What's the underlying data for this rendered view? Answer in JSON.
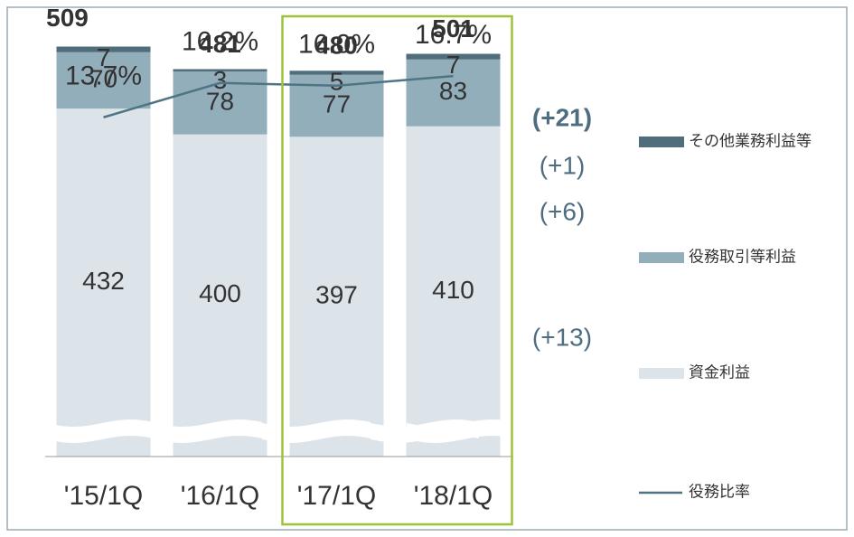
{
  "chart_data": {
    "type": "bar",
    "stacked": true,
    "categories": [
      "'15/1Q",
      "'16/1Q",
      "'17/1Q",
      "'18/1Q"
    ],
    "ylim": [
      120,
      560
    ],
    "series": [
      {
        "name": "資金利益",
        "color": "#dce3e9",
        "values": [
          432,
          400,
          397,
          410
        ]
      },
      {
        "name": "役務取引等利益",
        "color": "#93aebb",
        "values": [
          70,
          78,
          77,
          83
        ]
      },
      {
        "name": "その他業務利益等",
        "color": "#4f6d7a",
        "values": [
          7,
          3,
          5,
          7
        ]
      },
      {
        "name": "役務比率",
        "type": "line",
        "axis": "y2",
        "color": "#4f7584",
        "values": [
          13.7,
          16.2,
          16.0,
          16.7
        ],
        "value_labels": [
          "13.7%",
          "16.2%",
          "16.0%",
          "16.7%"
        ]
      }
    ],
    "y2lim": [
      0,
      20
    ],
    "totals": [
      509,
      481,
      480,
      501
    ],
    "annotations": [
      "(+21)",
      "(+1)",
      "(+6)",
      "(+13)"
    ],
    "highlight_category": 2
  }
}
